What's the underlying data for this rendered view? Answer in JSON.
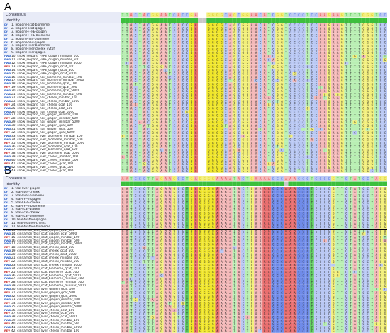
{
  "panels": [
    {
      "letter": "A",
      "consensus_label": "Consensus",
      "identity_label": "Identity",
      "sequences": [
        {
          "tag": "Df",
          "name": "1. leopard-scat-biomeme",
          "kind": "ref"
        },
        {
          "tag": "Df",
          "name": "2. leopard-scat-qiagen",
          "kind": "ref"
        },
        {
          "tag": "Df",
          "name": "3. leopard-FFPE-qiagen",
          "kind": "ref"
        },
        {
          "tag": "Df",
          "name": "4. leopard-FFPE-biomeme",
          "kind": "ref"
        },
        {
          "tag": "Df",
          "name": "5. leopard-hair-biomeme",
          "kind": "ref"
        },
        {
          "tag": "Df",
          "name": "6. leopard-hair-qiagen",
          "kind": "ref"
        },
        {
          "tag": "Df",
          "name": "7. leopard-liver-biomeme",
          "kind": "ref"
        },
        {
          "tag": "Df",
          "name": "8. leopard-liver-chelex_cytbf",
          "kind": "ref"
        },
        {
          "tag": "Df",
          "name": "9. leopard-liver-qiagen",
          "kind": "ref"
        },
        {
          "tag": "FWD",
          "name": "10. snow_leopard_FFPE_qiagen_minibar_100",
          "kind": "fwd"
        },
        {
          "tag": "FWD",
          "name": "11. snow_leopard_FFPE_qiagen_minibar_500",
          "kind": "fwd"
        },
        {
          "tag": "FWD",
          "name": "12. snow_leopard_FFPE_qiagen_minibar_5000",
          "kind": "fwd"
        },
        {
          "tag": "REV",
          "name": "13. snow_leopard_FFPE_qiagen_qcat_100",
          "kind": "rev"
        },
        {
          "tag": "FWD",
          "name": "14. snow_leopard_FFPE_qiagen_qcat_500",
          "kind": "fwd"
        },
        {
          "tag": "FWD",
          "name": "15. snow_leopard_FFPE_qiagen_qcat_5000",
          "kind": "fwd"
        },
        {
          "tag": "FWD",
          "name": "16. snow_leopard_hair_biomeme_minibar_100",
          "kind": "fwd"
        },
        {
          "tag": "FWD",
          "name": "17. snow_leopard_hair_biomeme_minibar_5000",
          "kind": "fwd"
        },
        {
          "tag": "FWD",
          "name": "18. snow_leopard_hair_biomeme_qcat_100",
          "kind": "fwd"
        },
        {
          "tag": "REV",
          "name": "19. snow_leopard_hair_biomeme_qcat_500",
          "kind": "rev"
        },
        {
          "tag": "FWD",
          "name": "20. snow_leopard_hair_biomeme_qcat_5000",
          "kind": "fwd"
        },
        {
          "tag": "FWD",
          "name": "21. snow_leopard_hair_biomeme_minibar_500",
          "kind": "fwd"
        },
        {
          "tag": "FWD",
          "name": "22. snow_leopard_hair_chelex_minibar_100",
          "kind": "fwd"
        },
        {
          "tag": "FWD",
          "name": "23. snow_leopard_hair_chelex_minibar_5000",
          "kind": "fwd"
        },
        {
          "tag": "REV",
          "name": "24. snow_leopard_hair_chelex_qcat_100",
          "kind": "rev"
        },
        {
          "tag": "FWD",
          "name": "25. snow_leopard_hair_chelex_qcat_500",
          "kind": "fwd"
        },
        {
          "tag": "FWD",
          "name": "26. snow_leopard_hair_chelex_qcat_5000",
          "kind": "fwd"
        },
        {
          "tag": "FWD",
          "name": "27. snow_leopard_hair_qiagen_minibar_100",
          "kind": "fwd"
        },
        {
          "tag": "REV",
          "name": "28. snow_leopard_hair_qiagen_minibar_500",
          "kind": "rev"
        },
        {
          "tag": "FWD",
          "name": "29. snow_leopard_hair_qiagen_minibar_5000",
          "kind": "fwd"
        },
        {
          "tag": "FWD",
          "name": "30. snow_leopard_hair_qiagen_qcat_100",
          "kind": "fwd"
        },
        {
          "tag": "FWD",
          "name": "31. snow_leopard_hair_qiagen_qcat_500",
          "kind": "fwd"
        },
        {
          "tag": "REV",
          "name": "32. snow_leopard_hair_qiagen_qcat_5000",
          "kind": "rev"
        },
        {
          "tag": "FWD",
          "name": "33. snow_leopard_liver_biomeme_minibar_100",
          "kind": "fwd"
        },
        {
          "tag": "FWD",
          "name": "34. snow_leopard_liver_biomeme_minibar_500",
          "kind": "fwd"
        },
        {
          "tag": "REV",
          "name": "35. snow_leopard_liver_biomeme_minibar_5000",
          "kind": "rev"
        },
        {
          "tag": "FWD",
          "name": "36. snow_leopard_liver_biomeme_qcat_100",
          "kind": "fwd"
        },
        {
          "tag": "FWD",
          "name": "37. snow_leopard_liver_biomeme_qcat_500",
          "kind": "fwd"
        },
        {
          "tag": "REV",
          "name": "38. snow_leopard_liver_biomeme_qcat_5000",
          "kind": "rev"
        },
        {
          "tag": "FWD",
          "name": "39. snow_leopard_liver_chelex_minibar_100",
          "kind": "fwd"
        },
        {
          "tag": "FWD",
          "name": "40. snow_leopard_liver_chelex_minibar_500",
          "kind": "fwd"
        },
        {
          "tag": "REV",
          "name": "41. snow_leopard_liver_chelex_qcat_100",
          "kind": "rev"
        },
        {
          "tag": "FWD",
          "name": "42. snow_leopard_liver_chelex_qcat_500",
          "kind": "fwd"
        },
        {
          "tag": "FWD",
          "name": "43. snow_leopard_liver_chelex_qcat_100",
          "kind": "fwd"
        }
      ]
    },
    {
      "letter": "B",
      "consensus_label": "Consensus",
      "identity_label": "Identity",
      "sequences": [
        {
          "tag": "Df",
          "name": "1. teal-liver-qiagen",
          "kind": "ref"
        },
        {
          "tag": "Df",
          "name": "2. teal-liver-chelex",
          "kind": "ref"
        },
        {
          "tag": "Df",
          "name": "3. teal-liver-biomeme",
          "kind": "ref"
        },
        {
          "tag": "Df",
          "name": "4. teal-FFPE-qiagen",
          "kind": "ref"
        },
        {
          "tag": "Df",
          "name": "5. teal-FFPE-chelex",
          "kind": "ref"
        },
        {
          "tag": "Df",
          "name": "6. teal-FFPE-biomeme",
          "kind": "ref"
        },
        {
          "tag": "Df",
          "name": "7. teal-scat-qiagen",
          "kind": "ref"
        },
        {
          "tag": "Df",
          "name": "8. teal-scat-chelex",
          "kind": "ref"
        },
        {
          "tag": "Df",
          "name": "9. teal-scat-biomeme",
          "kind": "ref"
        },
        {
          "tag": "Df",
          "name": "10. teal-feather-qiagen",
          "kind": "ref"
        },
        {
          "tag": "Df",
          "name": "11. teal-feather-chelex",
          "kind": "ref"
        },
        {
          "tag": "Df",
          "name": "12. teal-feather-biomeme",
          "kind": "ref"
        },
        {
          "tag": "FWD",
          "name": "13. cinnamon_teal_scat_qiagen_qcat_500",
          "kind": "fwd"
        },
        {
          "tag": "FWD",
          "name": "14. cinnamon_teal_scat_qiagen_qcat_5000",
          "kind": "fwd"
        },
        {
          "tag": "REV",
          "name": "15. cinnamon_teal_scat_qiagen_minibar_100",
          "kind": "rev"
        },
        {
          "tag": "FWD",
          "name": "16. cinnamon_teal_scat_qiagen_minibar_500",
          "kind": "fwd"
        },
        {
          "tag": "FWD",
          "name": "17. cinnamon_teal_scat_qiagen_minibar_5000",
          "kind": "fwd"
        },
        {
          "tag": "REV",
          "name": "18. cinnamon_teal_scat_chelex_qcat_100",
          "kind": "rev"
        },
        {
          "tag": "FWD",
          "name": "19. cinnamon_teal_scat_chelex_qcat_500",
          "kind": "fwd"
        },
        {
          "tag": "FWD",
          "name": "20. cinnamon_teal_scat_chelex_qcat_5000",
          "kind": "fwd"
        },
        {
          "tag": "FWD",
          "name": "21. cinnamon_teal_scat_chelex_minibar_100",
          "kind": "fwd"
        },
        {
          "tag": "REV",
          "name": "22. cinnamon_teal_scat_chelex_minibar_500",
          "kind": "rev"
        },
        {
          "tag": "FWD",
          "name": "23. cinnamon_teal_scat_chelex_minibar_5000",
          "kind": "fwd"
        },
        {
          "tag": "FWD",
          "name": "24. cinnamon_teal_scat_biomeme_qcat_100",
          "kind": "fwd"
        },
        {
          "tag": "REV",
          "name": "25. cinnamon_teal_scat_biomeme_qcat_500",
          "kind": "rev"
        },
        {
          "tag": "FWD",
          "name": "26. cinnamon_teal_scat_biomeme_qcat_5000",
          "kind": "fwd"
        },
        {
          "tag": "FWD",
          "name": "27. cinnamon_teal_scat_biomeme_minibar_100",
          "kind": "fwd"
        },
        {
          "tag": "REV",
          "name": "28. cinnamon_teal_scat_biomeme_minibar_500",
          "kind": "rev"
        },
        {
          "tag": "FWD",
          "name": "29. cinnamon_teal_scat_biomeme_minibar_5000",
          "kind": "fwd"
        },
        {
          "tag": "FWD",
          "name": "30. cinnamon_teal_liver_qiagen_qcat_100",
          "kind": "fwd"
        },
        {
          "tag": "REV",
          "name": "31. cinnamon_teal_liver_qiagen_qcat_500",
          "kind": "rev"
        },
        {
          "tag": "FWD",
          "name": "32. cinnamon_teal_liver_qiagen_qcat_5000",
          "kind": "fwd"
        },
        {
          "tag": "FWD",
          "name": "33. cinnamon_teal_liver_qiagen_minibar_100",
          "kind": "fwd"
        },
        {
          "tag": "REV",
          "name": "34. cinnamon_teal_liver_qiagen_minibar_500",
          "kind": "rev"
        },
        {
          "tag": "FWD",
          "name": "35. cinnamon_teal_liver_qiagen_minibar_5000",
          "kind": "fwd"
        },
        {
          "tag": "FWD",
          "name": "36. cinnamon_teal_liver_chelex_qcat_100",
          "kind": "fwd"
        },
        {
          "tag": "REV",
          "name": "37. cinnamon_teal_liver_chelex_qcat_500",
          "kind": "rev"
        },
        {
          "tag": "FWD",
          "name": "38. cinnamon_teal_liver_chelex_qcat_5000",
          "kind": "fwd"
        },
        {
          "tag": "FWD",
          "name": "39. cinnamon_teal_liver_chelex_minibar_100",
          "kind": "fwd"
        },
        {
          "tag": "REV",
          "name": "40. cinnamon_teal_liver_chelex_minibar_500",
          "kind": "rev"
        },
        {
          "tag": "FWD",
          "name": "41. cinnamon_teal_liver_chelex_minibar_5000",
          "kind": "fwd"
        },
        {
          "tag": "REV",
          "name": "42. cinnamon_teal_liver_chelex_minibar_100",
          "kind": "rev"
        }
      ]
    }
  ],
  "base_colors": {
    "A": "#f4b9b9",
    "C": "#b9c8f4",
    "G": "#f2ef7a",
    "T": "#b9efb3",
    "gap": "#ffffff"
  },
  "consensus_colors": {
    "A": "#e85a5a",
    "C": "#5a7ae8",
    "G": "#e0c830",
    "T": "#5ac85a"
  },
  "identity_color": "#3cbf3c"
}
